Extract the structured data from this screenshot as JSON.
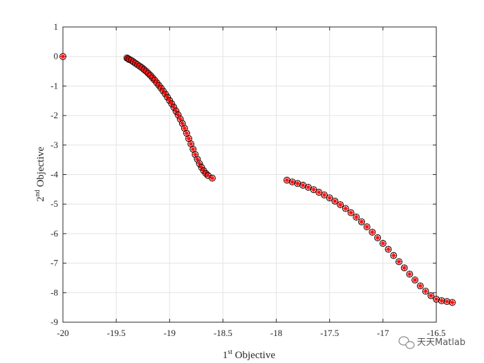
{
  "chart_data": {
    "type": "scatter",
    "xlabel": {
      "base": "1",
      "sup": "st",
      "rest": " Objective"
    },
    "ylabel": {
      "base": "2",
      "sup": "nd",
      "rest": " Objective"
    },
    "xlim": [
      -20,
      -16.5
    ],
    "ylim": [
      -9,
      1
    ],
    "xticks": [
      -20,
      -19.5,
      -19,
      -18.5,
      -18,
      -17.5,
      -17,
      -16.5
    ],
    "xtick_labels": [
      "-20",
      "-19.5",
      "-19",
      "-18.5",
      "-18",
      "-17.5",
      "-17",
      "-16.5"
    ],
    "yticks": [
      1,
      0,
      -1,
      -2,
      -3,
      -4,
      -5,
      -6,
      -7,
      -8,
      -9
    ],
    "ytick_labels": [
      "1",
      "0",
      "-1",
      "-2",
      "-3",
      "-4",
      "-5",
      "-6",
      "-7",
      "-8",
      "-9"
    ],
    "grid": true,
    "marker_colors": {
      "circle": "#000000",
      "star": "#ff0000"
    },
    "series": [
      {
        "points": [
          [
            -20.0,
            0.0
          ],
          [
            -19.4,
            -0.05
          ],
          [
            -19.39,
            -0.07
          ],
          [
            -19.38,
            -0.1
          ],
          [
            -19.36,
            -0.13
          ],
          [
            -19.34,
            -0.18
          ],
          [
            -19.32,
            -0.23
          ],
          [
            -19.3,
            -0.28
          ],
          [
            -19.28,
            -0.33
          ],
          [
            -19.26,
            -0.38
          ],
          [
            -19.24,
            -0.44
          ],
          [
            -19.22,
            -0.5
          ],
          [
            -19.2,
            -0.57
          ],
          [
            -19.18,
            -0.64
          ],
          [
            -19.16,
            -0.72
          ],
          [
            -19.14,
            -0.8
          ],
          [
            -19.12,
            -0.89
          ],
          [
            -19.1,
            -0.98
          ],
          [
            -19.08,
            -1.07
          ],
          [
            -19.06,
            -1.17
          ],
          [
            -19.04,
            -1.27
          ],
          [
            -19.02,
            -1.38
          ],
          [
            -19.0,
            -1.49
          ],
          [
            -18.98,
            -1.6
          ],
          [
            -18.96,
            -1.72
          ],
          [
            -18.94,
            -1.85
          ],
          [
            -18.92,
            -1.98
          ],
          [
            -18.9,
            -2.12
          ],
          [
            -18.88,
            -2.27
          ],
          [
            -18.86,
            -2.43
          ],
          [
            -18.84,
            -2.6
          ],
          [
            -18.82,
            -2.78
          ],
          [
            -18.8,
            -2.96
          ],
          [
            -18.78,
            -3.14
          ],
          [
            -18.76,
            -3.32
          ],
          [
            -18.74,
            -3.48
          ],
          [
            -18.72,
            -3.63
          ],
          [
            -18.7,
            -3.76
          ],
          [
            -18.68,
            -3.87
          ],
          [
            -18.66,
            -3.96
          ],
          [
            -18.64,
            -4.03
          ],
          [
            -18.6,
            -4.12
          ],
          [
            -17.9,
            -4.19
          ],
          [
            -17.85,
            -4.25
          ],
          [
            -17.8,
            -4.3
          ],
          [
            -17.75,
            -4.36
          ],
          [
            -17.7,
            -4.43
          ],
          [
            -17.65,
            -4.51
          ],
          [
            -17.6,
            -4.6
          ],
          [
            -17.55,
            -4.69
          ],
          [
            -17.5,
            -4.79
          ],
          [
            -17.45,
            -4.9
          ],
          [
            -17.4,
            -5.02
          ],
          [
            -17.35,
            -5.15
          ],
          [
            -17.3,
            -5.29
          ],
          [
            -17.25,
            -5.44
          ],
          [
            -17.2,
            -5.6
          ],
          [
            -17.15,
            -5.77
          ],
          [
            -17.1,
            -5.95
          ],
          [
            -17.05,
            -6.14
          ],
          [
            -17.0,
            -6.33
          ],
          [
            -16.95,
            -6.53
          ],
          [
            -16.9,
            -6.74
          ],
          [
            -16.85,
            -6.95
          ],
          [
            -16.8,
            -7.16
          ],
          [
            -16.75,
            -7.37
          ],
          [
            -16.7,
            -7.57
          ],
          [
            -16.65,
            -7.77
          ],
          [
            -16.6,
            -7.95
          ],
          [
            -16.55,
            -8.1
          ],
          [
            -16.5,
            -8.22
          ],
          [
            -16.45,
            -8.27
          ],
          [
            -16.4,
            -8.3
          ],
          [
            -16.35,
            -8.33
          ]
        ]
      }
    ]
  },
  "watermark": {
    "text": "天天Matlab",
    "icon": "wechat-icon"
  }
}
